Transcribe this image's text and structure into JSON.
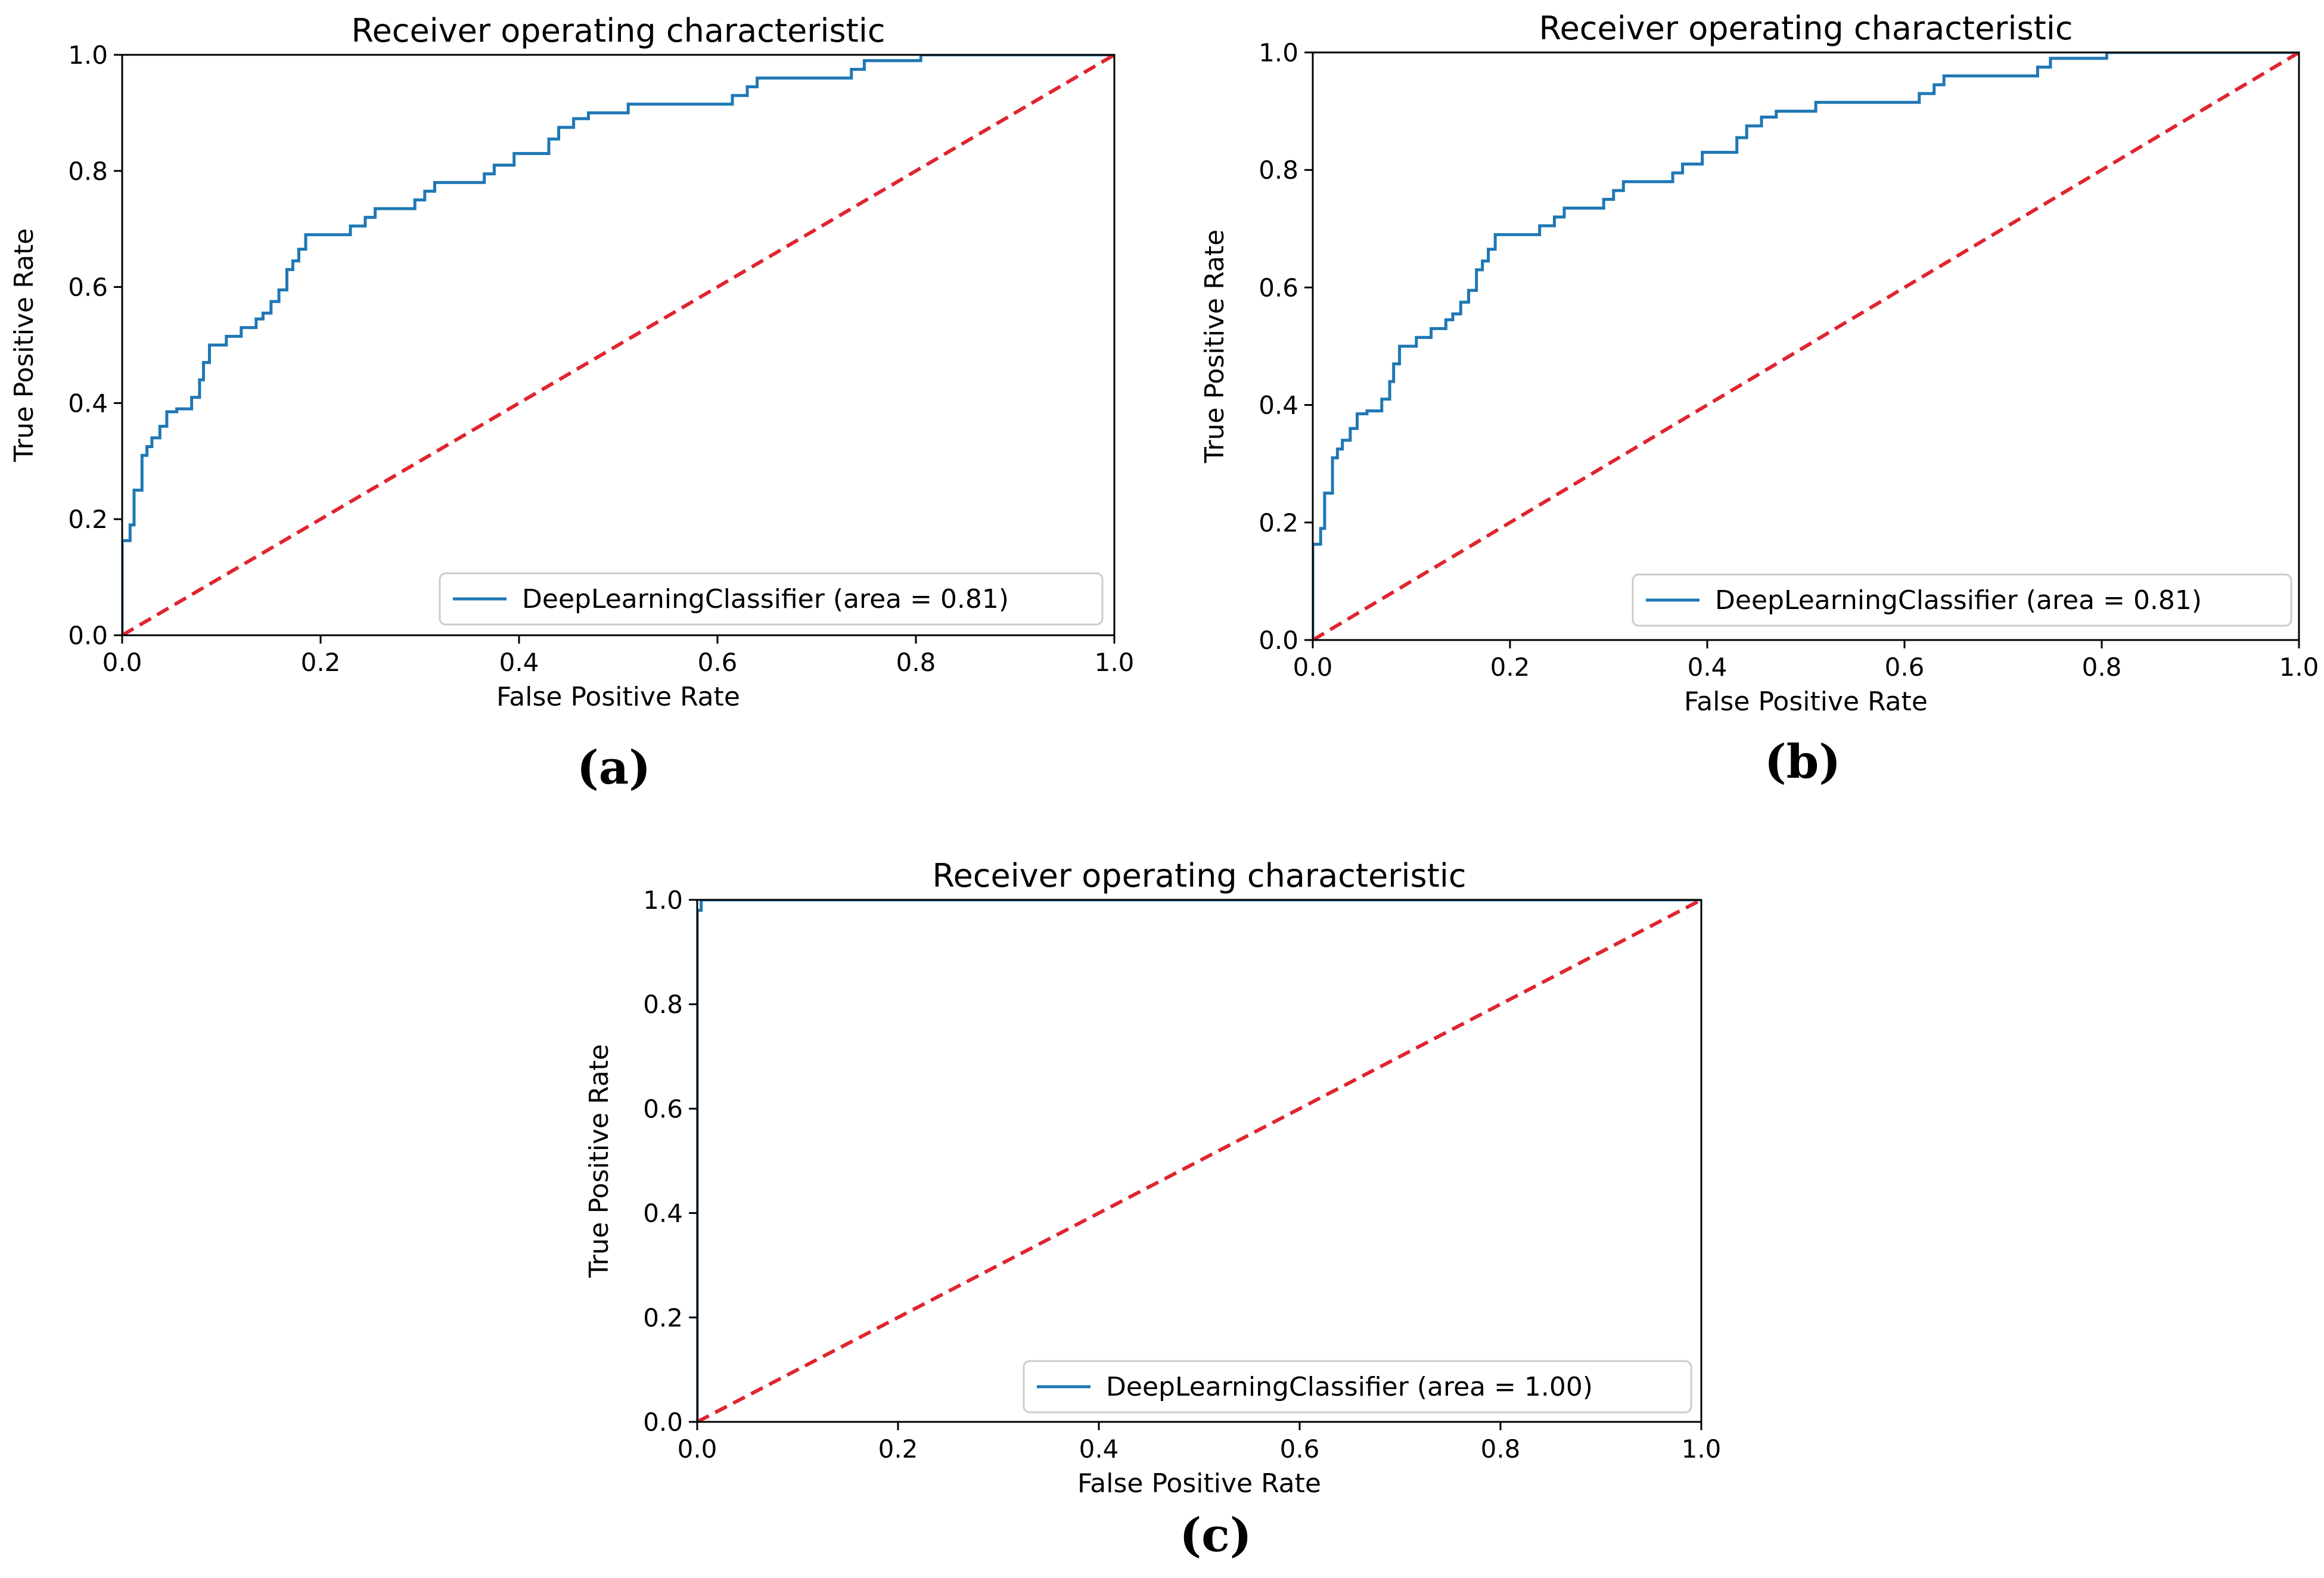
{
  "colors": {
    "roc_line": "#1f77b4",
    "chance_line": "#e0252f",
    "axes": "#000000",
    "background": "#ffffff"
  },
  "panels": [
    "(a)",
    "(b)",
    "(c)"
  ],
  "chart_data": [
    {
      "type": "line",
      "panel": "(a)",
      "title": "Receiver operating characteristic",
      "xlabel": "False Positive Rate",
      "ylabel": "True Positive Rate",
      "xlim": [
        0.0,
        1.0
      ],
      "ylim": [
        0.0,
        1.0
      ],
      "xticks": [
        "0.0",
        "0.2",
        "0.4",
        "0.6",
        "0.8",
        "1.0"
      ],
      "yticks": [
        "0.0",
        "0.2",
        "0.4",
        "0.6",
        "0.8",
        "1.0"
      ],
      "grid": false,
      "legend_position": "lower right",
      "series": [
        {
          "name": "DeepLearningClassifier (area = 0.81)",
          "style": "solid",
          "x": [
            0.0,
            0.0,
            0.008,
            0.008,
            0.012,
            0.012,
            0.02,
            0.02,
            0.025,
            0.025,
            0.03,
            0.03,
            0.038,
            0.038,
            0.045,
            0.045,
            0.055,
            0.055,
            0.07,
            0.07,
            0.078,
            0.078,
            0.082,
            0.082,
            0.088,
            0.088,
            0.105,
            0.105,
            0.12,
            0.12,
            0.135,
            0.135,
            0.142,
            0.142,
            0.15,
            0.15,
            0.158,
            0.158,
            0.166,
            0.166,
            0.172,
            0.172,
            0.178,
            0.178,
            0.185,
            0.185,
            0.23,
            0.23,
            0.245,
            0.245,
            0.255,
            0.255,
            0.295,
            0.295,
            0.305,
            0.305,
            0.315,
            0.315,
            0.365,
            0.365,
            0.375,
            0.375,
            0.395,
            0.395,
            0.43,
            0.43,
            0.44,
            0.44,
            0.455,
            0.455,
            0.47,
            0.47,
            0.51,
            0.51,
            0.615,
            0.615,
            0.63,
            0.63,
            0.64,
            0.64,
            0.735,
            0.735,
            0.748,
            0.748,
            0.805,
            0.805,
            1.0
          ],
          "y": [
            0.0,
            0.163,
            0.163,
            0.19,
            0.19,
            0.25,
            0.25,
            0.31,
            0.31,
            0.325,
            0.325,
            0.34,
            0.34,
            0.36,
            0.36,
            0.385,
            0.385,
            0.39,
            0.39,
            0.41,
            0.41,
            0.44,
            0.44,
            0.47,
            0.47,
            0.5,
            0.5,
            0.515,
            0.515,
            0.53,
            0.53,
            0.545,
            0.545,
            0.555,
            0.555,
            0.575,
            0.575,
            0.595,
            0.595,
            0.63,
            0.63,
            0.645,
            0.645,
            0.665,
            0.665,
            0.69,
            0.69,
            0.705,
            0.705,
            0.72,
            0.72,
            0.735,
            0.735,
            0.75,
            0.75,
            0.765,
            0.765,
            0.78,
            0.78,
            0.795,
            0.795,
            0.81,
            0.81,
            0.83,
            0.83,
            0.855,
            0.855,
            0.875,
            0.875,
            0.89,
            0.89,
            0.9,
            0.9,
            0.915,
            0.915,
            0.93,
            0.93,
            0.945,
            0.945,
            0.96,
            0.96,
            0.975,
            0.975,
            0.99,
            0.99,
            1.0,
            1.0
          ]
        },
        {
          "name": "",
          "style": "dashed",
          "x": [
            0.0,
            1.0
          ],
          "y": [
            0.0,
            1.0
          ]
        }
      ]
    },
    {
      "type": "line",
      "panel": "(b)",
      "title": "Receiver operating characteristic",
      "xlabel": "False Positive Rate",
      "ylabel": "True Positive Rate",
      "xlim": [
        0.0,
        1.0
      ],
      "ylim": [
        0.0,
        1.0
      ],
      "xticks": [
        "0.0",
        "0.2",
        "0.4",
        "0.6",
        "0.8",
        "1.0"
      ],
      "yticks": [
        "0.0",
        "0.2",
        "0.4",
        "0.6",
        "0.8",
        "1.0"
      ],
      "grid": false,
      "legend_position": "lower right",
      "series": [
        {
          "name": "DeepLearningClassifier (area = 0.81)",
          "style": "solid",
          "x": [
            0.0,
            0.0,
            0.008,
            0.008,
            0.012,
            0.012,
            0.02,
            0.02,
            0.025,
            0.025,
            0.03,
            0.03,
            0.038,
            0.038,
            0.045,
            0.045,
            0.055,
            0.055,
            0.07,
            0.07,
            0.078,
            0.078,
            0.082,
            0.082,
            0.088,
            0.088,
            0.105,
            0.105,
            0.12,
            0.12,
            0.135,
            0.135,
            0.142,
            0.142,
            0.15,
            0.15,
            0.158,
            0.158,
            0.166,
            0.166,
            0.172,
            0.172,
            0.178,
            0.178,
            0.185,
            0.185,
            0.23,
            0.23,
            0.245,
            0.245,
            0.255,
            0.255,
            0.295,
            0.295,
            0.305,
            0.305,
            0.315,
            0.315,
            0.365,
            0.365,
            0.375,
            0.375,
            0.395,
            0.395,
            0.43,
            0.43,
            0.44,
            0.44,
            0.455,
            0.455,
            0.47,
            0.47,
            0.51,
            0.51,
            0.615,
            0.615,
            0.63,
            0.63,
            0.64,
            0.64,
            0.735,
            0.735,
            0.748,
            0.748,
            0.805,
            0.805,
            1.0
          ],
          "y": [
            0.0,
            0.163,
            0.163,
            0.19,
            0.19,
            0.25,
            0.25,
            0.31,
            0.31,
            0.325,
            0.325,
            0.34,
            0.34,
            0.36,
            0.36,
            0.385,
            0.385,
            0.39,
            0.39,
            0.41,
            0.41,
            0.44,
            0.44,
            0.47,
            0.47,
            0.5,
            0.5,
            0.515,
            0.515,
            0.53,
            0.53,
            0.545,
            0.545,
            0.555,
            0.555,
            0.575,
            0.575,
            0.595,
            0.595,
            0.63,
            0.63,
            0.645,
            0.645,
            0.665,
            0.665,
            0.69,
            0.69,
            0.705,
            0.705,
            0.72,
            0.72,
            0.735,
            0.735,
            0.75,
            0.75,
            0.765,
            0.765,
            0.78,
            0.78,
            0.795,
            0.795,
            0.81,
            0.81,
            0.83,
            0.83,
            0.855,
            0.855,
            0.875,
            0.875,
            0.89,
            0.89,
            0.9,
            0.9,
            0.915,
            0.915,
            0.93,
            0.93,
            0.945,
            0.945,
            0.96,
            0.96,
            0.975,
            0.975,
            0.99,
            0.99,
            1.0,
            1.0
          ]
        },
        {
          "name": "",
          "style": "dashed",
          "x": [
            0.0,
            1.0
          ],
          "y": [
            0.0,
            1.0
          ]
        }
      ]
    },
    {
      "type": "line",
      "panel": "(c)",
      "title": "Receiver operating characteristic",
      "xlabel": "False Positive Rate",
      "ylabel": "True Positive Rate",
      "xlim": [
        0.0,
        1.0
      ],
      "ylim": [
        0.0,
        1.0
      ],
      "xticks": [
        "0.0",
        "0.2",
        "0.4",
        "0.6",
        "0.8",
        "1.0"
      ],
      "yticks": [
        "0.0",
        "0.2",
        "0.4",
        "0.6",
        "0.8",
        "1.0"
      ],
      "grid": false,
      "legend_position": "lower right",
      "series": [
        {
          "name": "DeepLearningClassifier (area = 1.00)",
          "style": "solid",
          "x": [
            0.0,
            0.0,
            0.004,
            0.004,
            1.0
          ],
          "y": [
            0.0,
            0.98,
            0.98,
            1.0,
            1.0
          ]
        },
        {
          "name": "",
          "style": "dashed",
          "x": [
            0.0,
            1.0
          ],
          "y": [
            0.0,
            1.0
          ]
        }
      ]
    }
  ]
}
